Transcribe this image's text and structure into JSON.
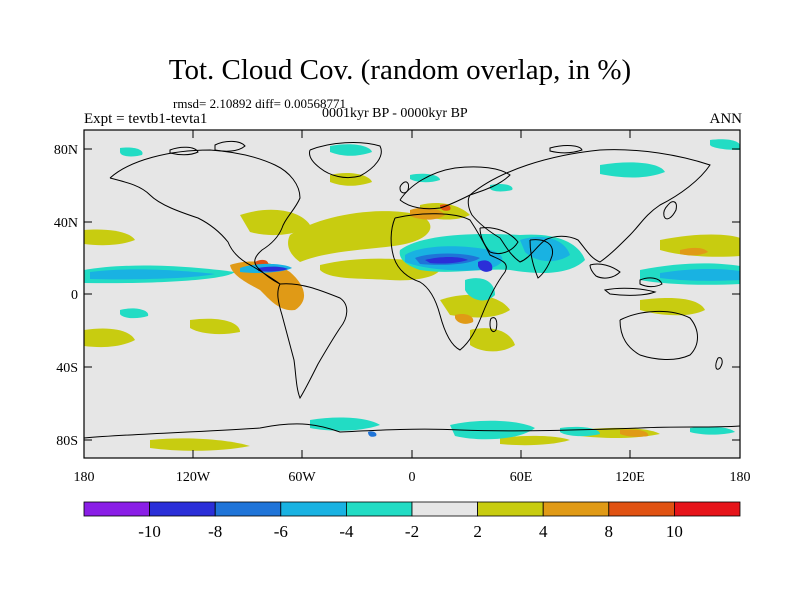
{
  "title": "Tot. Cloud Cov. (random overlap, in %)",
  "stats": "rmsd= 2.10892  diff= 0.00568771",
  "period": "0001kyr BP - 0000kyr BP",
  "experiment": "Expt = tevtb1-tevta1",
  "season": "ANN",
  "lat_ticks": [
    "80N",
    "40N",
    "0",
    "40S",
    "80S"
  ],
  "lon_ticks": [
    "180",
    "120W",
    "60W",
    "0",
    "60E",
    "120E",
    "180"
  ],
  "colorbar": {
    "colors": [
      "#8a1ee6",
      "#2b2fd8",
      "#1f74d8",
      "#19b2e2",
      "#22dcc4",
      "#e6e6e6",
      "#c8cc10",
      "#e09a16",
      "#e05212",
      "#e6141a"
    ],
    "labels": [
      "-10",
      "-8",
      "-6",
      "-4",
      "-2",
      "2",
      "4",
      "8",
      "10"
    ]
  },
  "colors": {
    "background": "#e6e6e6",
    "coastline": "#000000"
  }
}
